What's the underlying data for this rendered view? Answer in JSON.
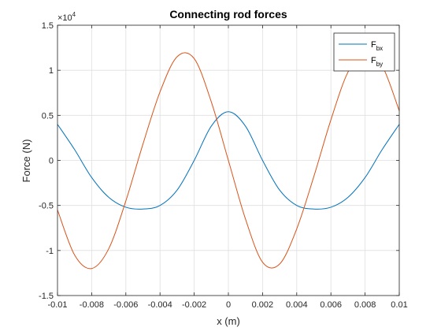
{
  "chart_data": {
    "type": "line",
    "title": "Connecting rod forces",
    "xlabel": "x (m)",
    "ylabel": "Force (N)",
    "y_exponent_label": "×10",
    "y_exponent_power": "4",
    "xlim": [
      -0.01,
      0.01
    ],
    "ylim": [
      -1.5,
      1.5
    ],
    "y_scale_factor": 10000,
    "grid": true,
    "legend_location": "top-right",
    "xticks": [
      -0.01,
      -0.008,
      -0.006,
      -0.004,
      -0.002,
      0,
      0.002,
      0.004,
      0.006,
      0.008,
      0.01
    ],
    "xtick_labels": [
      "-0.01",
      "-0.008",
      "-0.006",
      "-0.004",
      "-0.002",
      "0",
      "0.002",
      "0.004",
      "0.006",
      "0.008",
      "0.01"
    ],
    "yticks": [
      -1.5,
      -1,
      -0.5,
      0,
      0.5,
      1,
      1.5
    ],
    "ytick_labels": [
      "-1.5",
      "-1",
      "-0.5",
      "0",
      "0.5",
      "1",
      "1.5"
    ],
    "x": [
      -0.01,
      -0.009,
      -0.008,
      -0.007,
      -0.006,
      -0.005,
      -0.004,
      -0.003,
      -0.002,
      -0.001,
      0,
      0.001,
      0.002,
      0.003,
      0.004,
      0.005,
      0.006,
      0.007,
      0.008,
      0.009,
      0.01
    ],
    "series": [
      {
        "name_main": "F",
        "name_sub": "bx",
        "color": "#0072BD",
        "values": [
          0.4,
          0.12,
          -0.19,
          -0.41,
          -0.52,
          -0.54,
          -0.5,
          -0.33,
          0.0,
          0.38,
          0.54,
          0.38,
          0.0,
          -0.33,
          -0.5,
          -0.54,
          -0.52,
          -0.41,
          -0.19,
          0.12,
          0.4
        ]
      },
      {
        "name_main": "F",
        "name_sub": "by",
        "color": "#D95319",
        "values": [
          -0.55,
          -1.05,
          -1.2,
          -0.98,
          -0.45,
          0.18,
          0.76,
          1.15,
          1.13,
          0.65,
          0.0,
          -0.65,
          -1.13,
          -1.15,
          -0.76,
          -0.18,
          0.45,
          0.98,
          1.2,
          1.05,
          0.55
        ]
      }
    ]
  }
}
